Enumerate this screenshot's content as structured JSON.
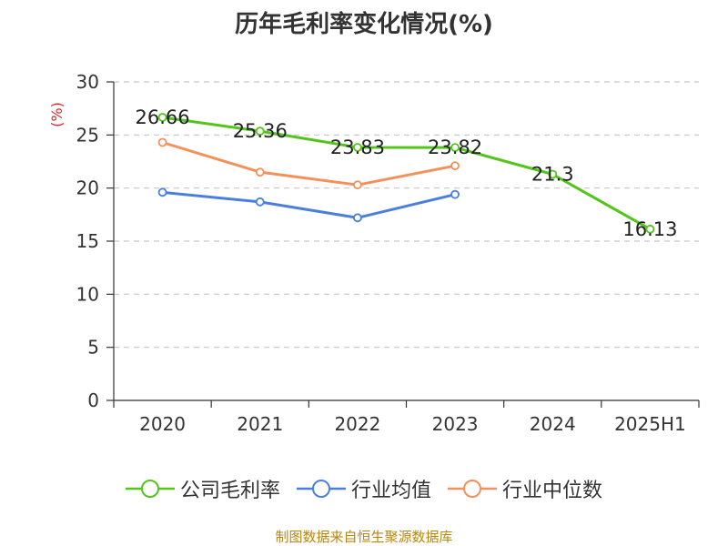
{
  "chart_data": {
    "type": "line",
    "title": "历年毛利率变化情况(%)",
    "ylabel": "(%)",
    "xlabel": "",
    "categories": [
      "2020",
      "2021",
      "2022",
      "2023",
      "2024",
      "2025H1"
    ],
    "ylim": [
      0,
      30
    ],
    "yticks": [
      0,
      5,
      10,
      15,
      20,
      25,
      30
    ],
    "grid": "horizontal dashed",
    "legend_position": "bottom",
    "series": [
      {
        "name": "公司毛利率",
        "color": "#52c41a",
        "values": [
          26.66,
          25.36,
          23.83,
          23.82,
          21.3,
          16.13
        ],
        "labels": [
          "26.66",
          "25.36",
          "23.83",
          "23.82",
          "21.3",
          "16.13"
        ]
      },
      {
        "name": "行业均值",
        "color": "#4a7fdc",
        "values": [
          19.6,
          18.7,
          17.2,
          19.4,
          null,
          null
        ]
      },
      {
        "name": "行业中位数",
        "color": "#f4905a",
        "values": [
          24.3,
          21.5,
          20.3,
          22.1,
          null,
          null
        ]
      }
    ]
  },
  "source_text": "制图数据来自恒生聚源数据库"
}
